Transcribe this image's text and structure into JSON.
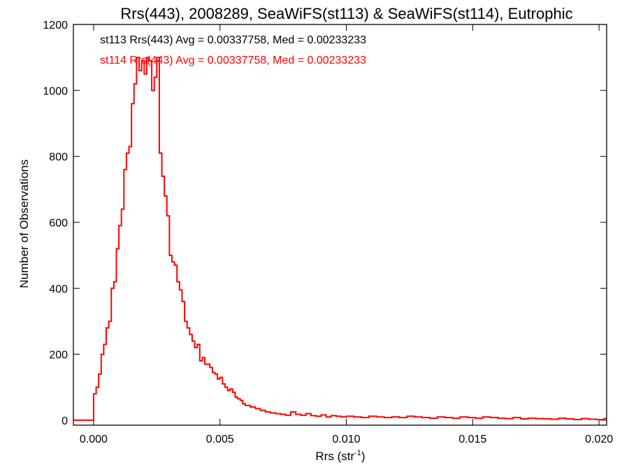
{
  "chart_data": {
    "type": "line",
    "title": "Rrs(443), 2008289, SeaWiFS(st113) & SeaWiFS(st114), Eutrophic",
    "xlabel": "Rrs (str",
    "xlabel_sup": "-1",
    "xlabel_end": ")",
    "ylabel": "Number of Observations",
    "xlim": [
      -0.0008,
      0.0203
    ],
    "ylim": [
      -15,
      1200
    ],
    "x_ticks": [
      0.0,
      0.005,
      0.01,
      0.015,
      0.02
    ],
    "x_tick_labels": [
      "0.000",
      "0.005",
      "0.010",
      "0.015",
      "0.020"
    ],
    "y_ticks": [
      0,
      200,
      400,
      600,
      800,
      1000,
      1200
    ],
    "y_tick_labels": [
      "0",
      "200",
      "400",
      "600",
      "800",
      "1000",
      "1200"
    ],
    "grid": false,
    "annotations": [
      {
        "text": "st113 Rrs(443) Avg = 0.00337758, Med = 0.00233233",
        "color": "#000000"
      },
      {
        "text": "st114 Rrs(443) Avg = 0.00337758, Med = 0.00233233",
        "color": "#ff0000"
      }
    ],
    "series": [
      {
        "color": "#ff0000",
        "x": [
          -0.0008,
          -0.0002,
          0.0,
          0.0001,
          0.0002,
          0.0003,
          0.0004,
          0.0005,
          0.0006,
          0.0007,
          0.0008,
          0.0009,
          0.001,
          0.0011,
          0.0012,
          0.0013,
          0.0014,
          0.0015,
          0.0016,
          0.0017,
          0.0018,
          0.0019,
          0.002,
          0.0021,
          0.0022,
          0.0023,
          0.0024,
          0.0025,
          0.0026,
          0.0027,
          0.0028,
          0.0029,
          0.003,
          0.0031,
          0.0032,
          0.0033,
          0.0034,
          0.0035,
          0.0036,
          0.0037,
          0.0038,
          0.0039,
          0.004,
          0.0041,
          0.0042,
          0.0043,
          0.0044,
          0.0045,
          0.0046,
          0.0047,
          0.0048,
          0.0049,
          0.005,
          0.0051,
          0.0052,
          0.0053,
          0.0054,
          0.0055,
          0.0056,
          0.0057,
          0.0058,
          0.0059,
          0.006,
          0.0062,
          0.0064,
          0.0066,
          0.0068,
          0.007,
          0.0072,
          0.0074,
          0.0076,
          0.0078,
          0.008,
          0.0082,
          0.0084,
          0.0086,
          0.0088,
          0.009,
          0.0092,
          0.0094,
          0.0096,
          0.0098,
          0.01,
          0.0103,
          0.0106,
          0.0109,
          0.0112,
          0.0115,
          0.0118,
          0.0121,
          0.0124,
          0.0127,
          0.013,
          0.0133,
          0.0136,
          0.0139,
          0.0142,
          0.0145,
          0.0148,
          0.0151,
          0.0154,
          0.0157,
          0.016,
          0.0163,
          0.0166,
          0.0169,
          0.0172,
          0.0175,
          0.0178,
          0.0181,
          0.0184,
          0.0187,
          0.019,
          0.0193,
          0.0196,
          0.0199,
          0.0202
        ],
        "y": [
          0,
          0,
          80,
          100,
          140,
          200,
          230,
          280,
          300,
          400,
          420,
          520,
          590,
          640,
          760,
          810,
          830,
          960,
          1020,
          1100,
          1060,
          1090,
          1050,
          1100,
          1090,
          1000,
          1040,
          1100,
          810,
          740,
          680,
          620,
          500,
          480,
          470,
          420,
          395,
          360,
          300,
          280,
          260,
          240,
          220,
          230,
          180,
          190,
          170,
          170,
          160,
          145,
          140,
          125,
          130,
          110,
          100,
          90,
          95,
          85,
          70,
          65,
          60,
          50,
          45,
          40,
          35,
          30,
          25,
          22,
          20,
          18,
          15,
          25,
          18,
          15,
          20,
          14,
          12,
          16,
          10,
          14,
          12,
          10,
          12,
          10,
          8,
          12,
          10,
          8,
          10,
          8,
          12,
          10,
          8,
          6,
          10,
          8,
          6,
          10,
          8,
          6,
          10,
          8,
          6,
          5,
          8,
          4,
          6,
          5,
          4,
          3,
          6,
          4,
          2,
          5,
          3,
          2,
          5
        ]
      }
    ]
  }
}
